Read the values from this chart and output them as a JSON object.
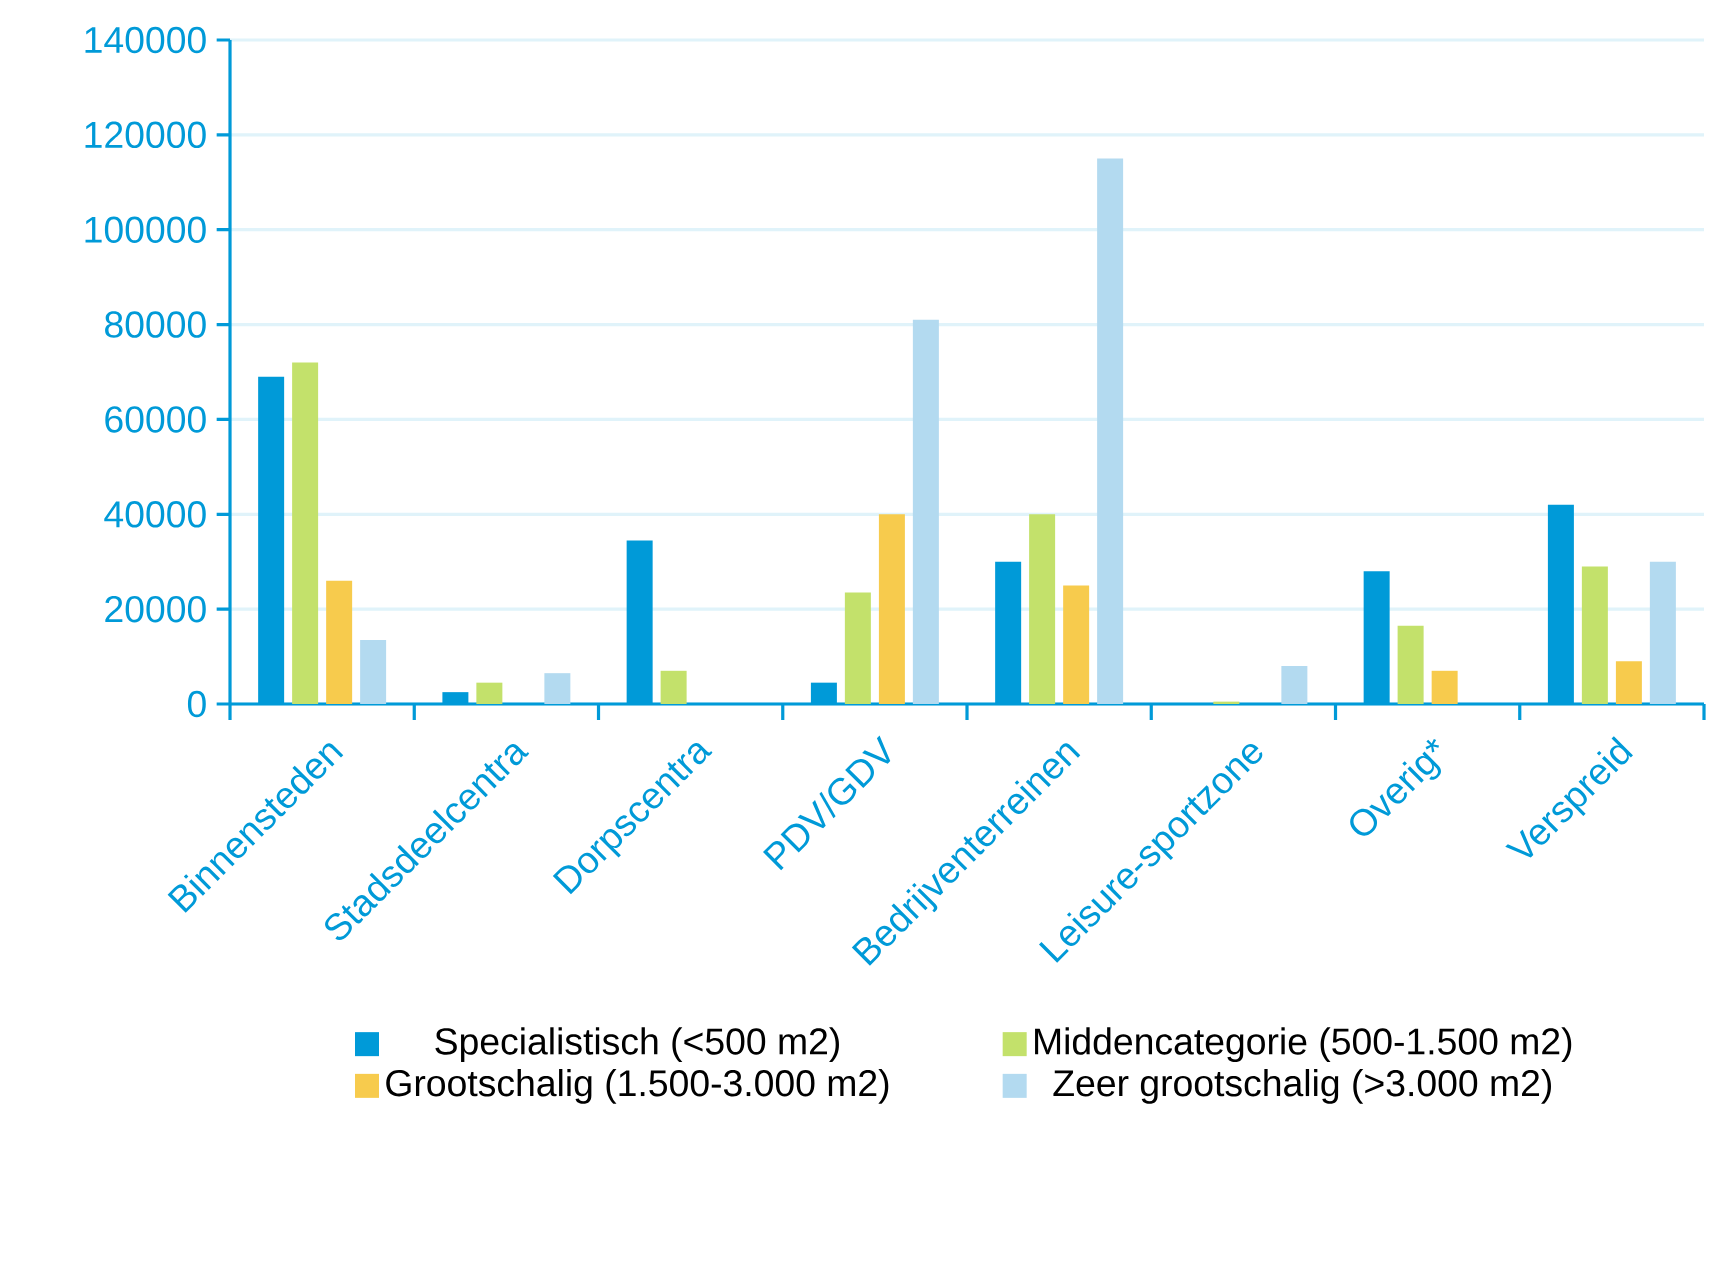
{
  "chart_data": {
    "type": "bar",
    "categories": [
      "Binnensteden",
      "Stadsdeelcentra",
      "Dorpscentra",
      "PDV/GDV",
      "Bedrijventerreinen",
      "Leisure-sportzone",
      "Overig*",
      "Verspreid"
    ],
    "series": [
      {
        "name": "Specialistisch (<500 m2)",
        "color": "#009ad8",
        "values": [
          69000,
          2500,
          34500,
          4500,
          30000,
          0,
          28000,
          42000
        ]
      },
      {
        "name": "Middencategorie (500-1.500 m2)",
        "color": "#c3e16b",
        "values": [
          72000,
          4500,
          7000,
          23500,
          40000,
          500,
          16500,
          29000
        ]
      },
      {
        "name": "Grootschalig (1.500-3.000 m2)",
        "color": "#f7cb4d",
        "values": [
          26000,
          0,
          0,
          40000,
          25000,
          0,
          7000,
          9000
        ]
      },
      {
        "name": "Zeer grootschalig (>3.000 m2)",
        "color": "#b3daf0",
        "values": [
          13500,
          6500,
          0,
          81000,
          115000,
          8000,
          0,
          30000
        ]
      }
    ],
    "ylim": [
      0,
      140000
    ],
    "yticks": [
      0,
      20000,
      40000,
      60000,
      80000,
      100000,
      120000,
      140000
    ],
    "grid": "y",
    "legend": "bottom"
  }
}
